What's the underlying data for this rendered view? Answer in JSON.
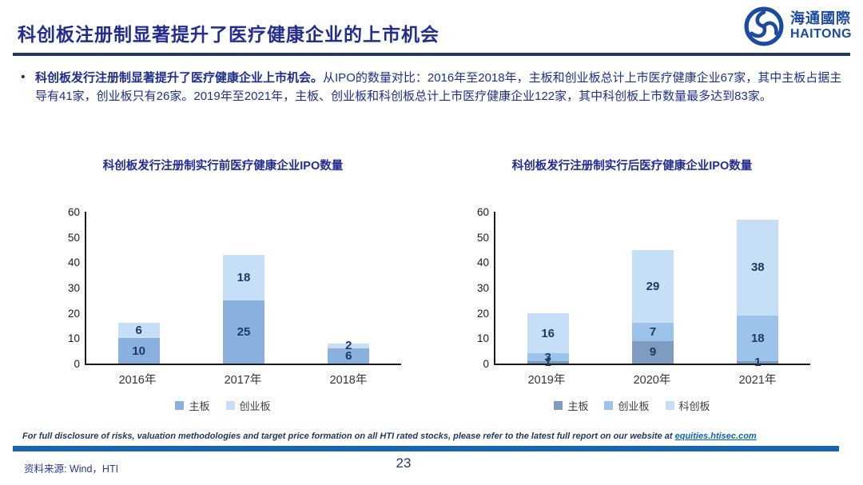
{
  "header": {
    "title": "科创板注册制显著提升了医疗健康企业的上市机会",
    "logo_cn": "海通國際",
    "logo_en": "HAITONG"
  },
  "bullet": {
    "marker": "•",
    "lead": "科创板发行注册制显著提升了医疗健康企业上市机会。",
    "body": "从IPO的数量对比：2016年至2018年，主板和创业板总计上市医疗健康企业67家，其中主板占据主导有41家，创业板只有26家。2019年至2021年，主板、创业板和科创板总计上市医疗健康企业122家，其中科创板上市数量最多达到83家。"
  },
  "chart_data": [
    {
      "type": "bar",
      "stacked": true,
      "title": "科创板发行注册制实行前医疗健康企业IPO数量",
      "categories": [
        "2016年",
        "2017年",
        "2018年"
      ],
      "series": [
        {
          "name": "主板",
          "values": [
            10,
            25,
            6
          ],
          "color": "#8AB1DD"
        },
        {
          "name": "创业板",
          "values": [
            6,
            18,
            2
          ],
          "color": "#C7DFF6"
        }
      ],
      "totals": [
        16,
        43,
        8
      ],
      "ylim": [
        0,
        60
      ],
      "yticks": [
        0,
        10,
        20,
        30,
        40,
        50,
        60
      ],
      "grid": false,
      "legend_position": "bottom"
    },
    {
      "type": "bar",
      "stacked": true,
      "title": "科创板发行注册制实行后医疗健康企业IPO数量",
      "categories": [
        "2019年",
        "2020年",
        "2021年"
      ],
      "series": [
        {
          "name": "主板",
          "values": [
            1,
            9,
            1
          ],
          "color": "#7E9CC0"
        },
        {
          "name": "创业板",
          "values": [
            3,
            7,
            18
          ],
          "color": "#9CC3E9"
        },
        {
          "name": "科创板",
          "values": [
            16,
            29,
            38
          ],
          "color": "#C7DFF6"
        }
      ],
      "totals": [
        20,
        45,
        57
      ],
      "ylim": [
        0,
        60
      ],
      "yticks": [
        0,
        10,
        20,
        30,
        40,
        50,
        60
      ],
      "grid": false,
      "legend_position": "bottom"
    }
  ],
  "footer": {
    "disclaimer_prefix": "For full disclosure of risks, valuation methodologies and target price formation on all HTI rated stocks, please refer to the latest full report on our website at ",
    "disclaimer_link": "equities.htisec.com",
    "source": "资料来源: Wind，HTI",
    "page_number": "23"
  },
  "colors": {
    "title_navy": "#232C8F",
    "text_navy": "#1F2F8C",
    "label_navy": "#1F3864",
    "rule_navy": "#1F3864",
    "footer_bar": "#1765B0",
    "link_blue": "#0563C1",
    "logo_blue": "#1B4BA0",
    "source_navy": "#2B3990"
  }
}
